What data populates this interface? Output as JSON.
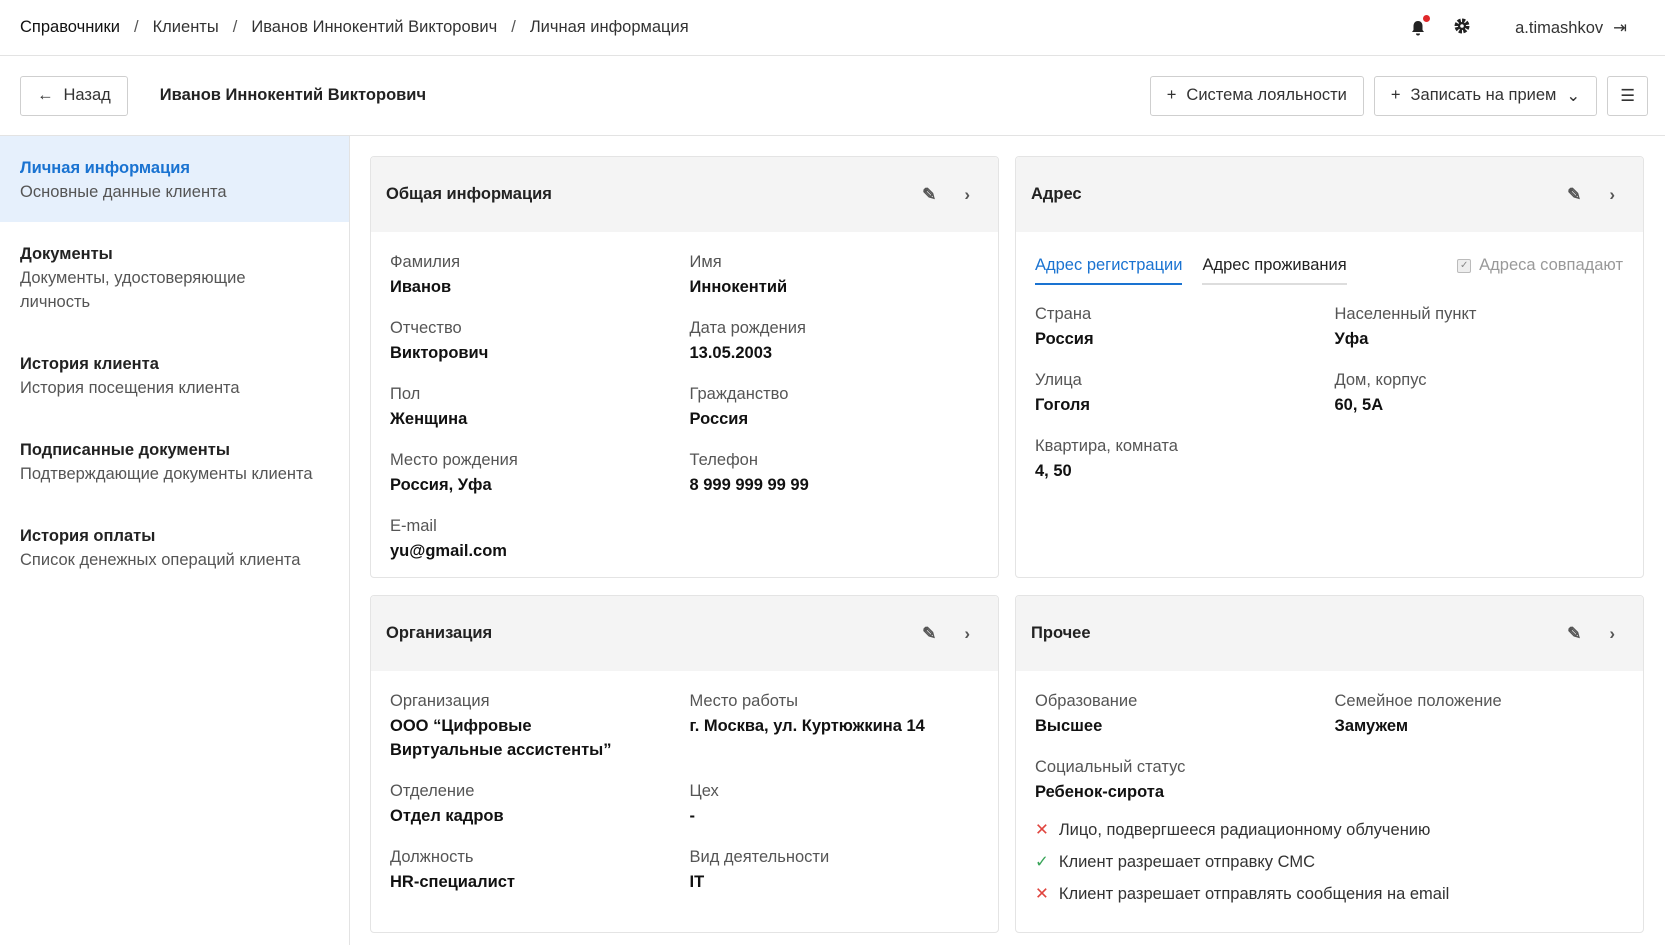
{
  "breadcrumbs": [
    "Справочники",
    "Клиенты",
    "Иванов Иннокентий Викторович",
    "Личная информация"
  ],
  "user": {
    "name": "a.timashkov"
  },
  "toolbar": {
    "back": "Назад",
    "title": "Иванов Иннокентий Викторович",
    "loyalty": "Система лояльности",
    "appointment": "Записать на прием"
  },
  "sidebar": [
    {
      "title": "Личная информация",
      "desc": "Основные данные клиента"
    },
    {
      "title": "Документы",
      "desc": "Документы, удостоверяющие личность"
    },
    {
      "title": "История клиента",
      "desc": "История посещения клиента"
    },
    {
      "title": "Подписанные документы",
      "desc": "Подтверждающие документы клиента"
    },
    {
      "title": "История оплаты",
      "desc": "Список денежных операций клиента"
    }
  ],
  "general": {
    "title": "Общая информация",
    "fields": [
      {
        "label": "Фамилия",
        "value": "Иванов"
      },
      {
        "label": "Имя",
        "value": "Иннокентий"
      },
      {
        "label": "Отчество",
        "value": "Викторович"
      },
      {
        "label": "Дата рождения",
        "value": "13.05.2003"
      },
      {
        "label": "Пол",
        "value": "Женщина"
      },
      {
        "label": "Гражданство",
        "value": "Россия"
      },
      {
        "label": "Место рождения",
        "value": "Россия, Уфа"
      },
      {
        "label": "Телефон",
        "value": "8 999 999 99 99"
      },
      {
        "label": "E-mail",
        "value": "yu@gmail.com"
      }
    ]
  },
  "address": {
    "title": "Адрес",
    "tab_reg": "Адрес регистрации",
    "tab_live": "Адрес проживания",
    "same": "Адреса совпадают",
    "fields": [
      {
        "label": "Страна",
        "value": "Россия"
      },
      {
        "label": "Населенный пункт",
        "value": "Уфа"
      },
      {
        "label": "Улица",
        "value": "Гоголя"
      },
      {
        "label": "Дом, корпус",
        "value": "60, 5А"
      },
      {
        "label": "Квартира, комната",
        "value": "4, 50"
      }
    ]
  },
  "org": {
    "title": "Организация",
    "fields": [
      {
        "label": "Организация",
        "value": "ООО “Цифровые Виртуальные ассистенты”"
      },
      {
        "label": "Место работы",
        "value": "г. Москва, ул. Куртюжкина 14"
      },
      {
        "label": "Отделение",
        "value": "Отдел кадров"
      },
      {
        "label": "Цех",
        "value": "-"
      },
      {
        "label": "Должность",
        "value": "HR-специалист"
      },
      {
        "label": "Вид деятельности",
        "value": "IT"
      }
    ]
  },
  "other": {
    "title": "Прочее",
    "fields": [
      {
        "label": "Образование",
        "value": "Высшее"
      },
      {
        "label": "Семейное положение",
        "value": "Замужем"
      },
      {
        "label": "Социальный статус",
        "value": "Ребенок-сирота"
      }
    ],
    "flags": [
      {
        "text": "Лицо, подвергшееся радиационному облучению",
        "state": false
      },
      {
        "text": "Клиент разрешает отправку СМС",
        "state": true
      },
      {
        "text": "Клиент разрешает отправлять сообщения на email",
        "state": false
      }
    ]
  },
  "colors": {
    "accent": "#1a73d1",
    "active_bg": "#e6f0fc",
    "error": "#e0443e",
    "success": "#3aa55a"
  }
}
